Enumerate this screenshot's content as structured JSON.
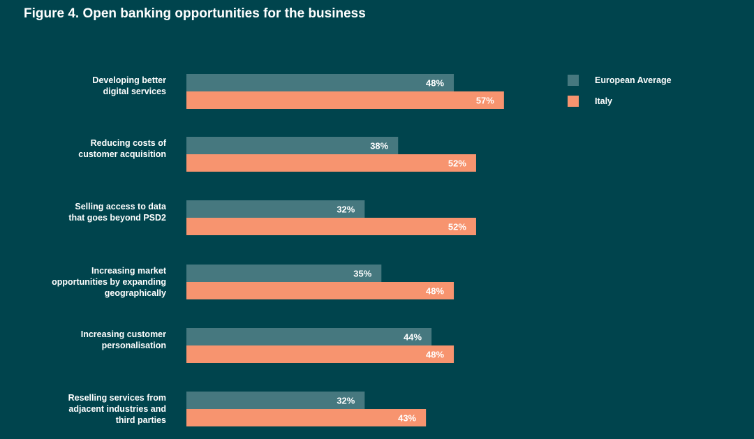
{
  "title": "Figure 4. Open banking opportunities for the business",
  "colors": {
    "background": "#00444d",
    "european": "#46787f",
    "italy": "#f7946f",
    "text": "#ffffff"
  },
  "chart_data": {
    "type": "bar",
    "orientation": "horizontal",
    "categories": [
      [
        "Developing better",
        "digital services"
      ],
      [
        "Reducing costs of",
        "customer acquisition"
      ],
      [
        "Selling access to data",
        "that goes beyond PSD2"
      ],
      [
        "Increasing market",
        "opportunities by expanding",
        "geographically"
      ],
      [
        "Increasing customer",
        "personalisation"
      ],
      [
        "Reselling services from",
        "adjacent industries and",
        "third parties"
      ]
    ],
    "series": [
      {
        "name": "European Average",
        "color": "#46787f",
        "values": [
          48,
          38,
          32,
          35,
          44,
          32
        ],
        "labels": [
          "48%",
          "38%",
          "32%",
          "35%",
          "44%",
          "32%"
        ]
      },
      {
        "name": "Italy",
        "color": "#f7946f",
        "values": [
          57,
          52,
          52,
          48,
          48,
          43
        ],
        "labels": [
          "57%",
          "52%",
          "52%",
          "48%",
          "48%",
          "43%"
        ]
      }
    ],
    "xlim": [
      0,
      100
    ],
    "legend_position": "top-right",
    "grid": false
  }
}
